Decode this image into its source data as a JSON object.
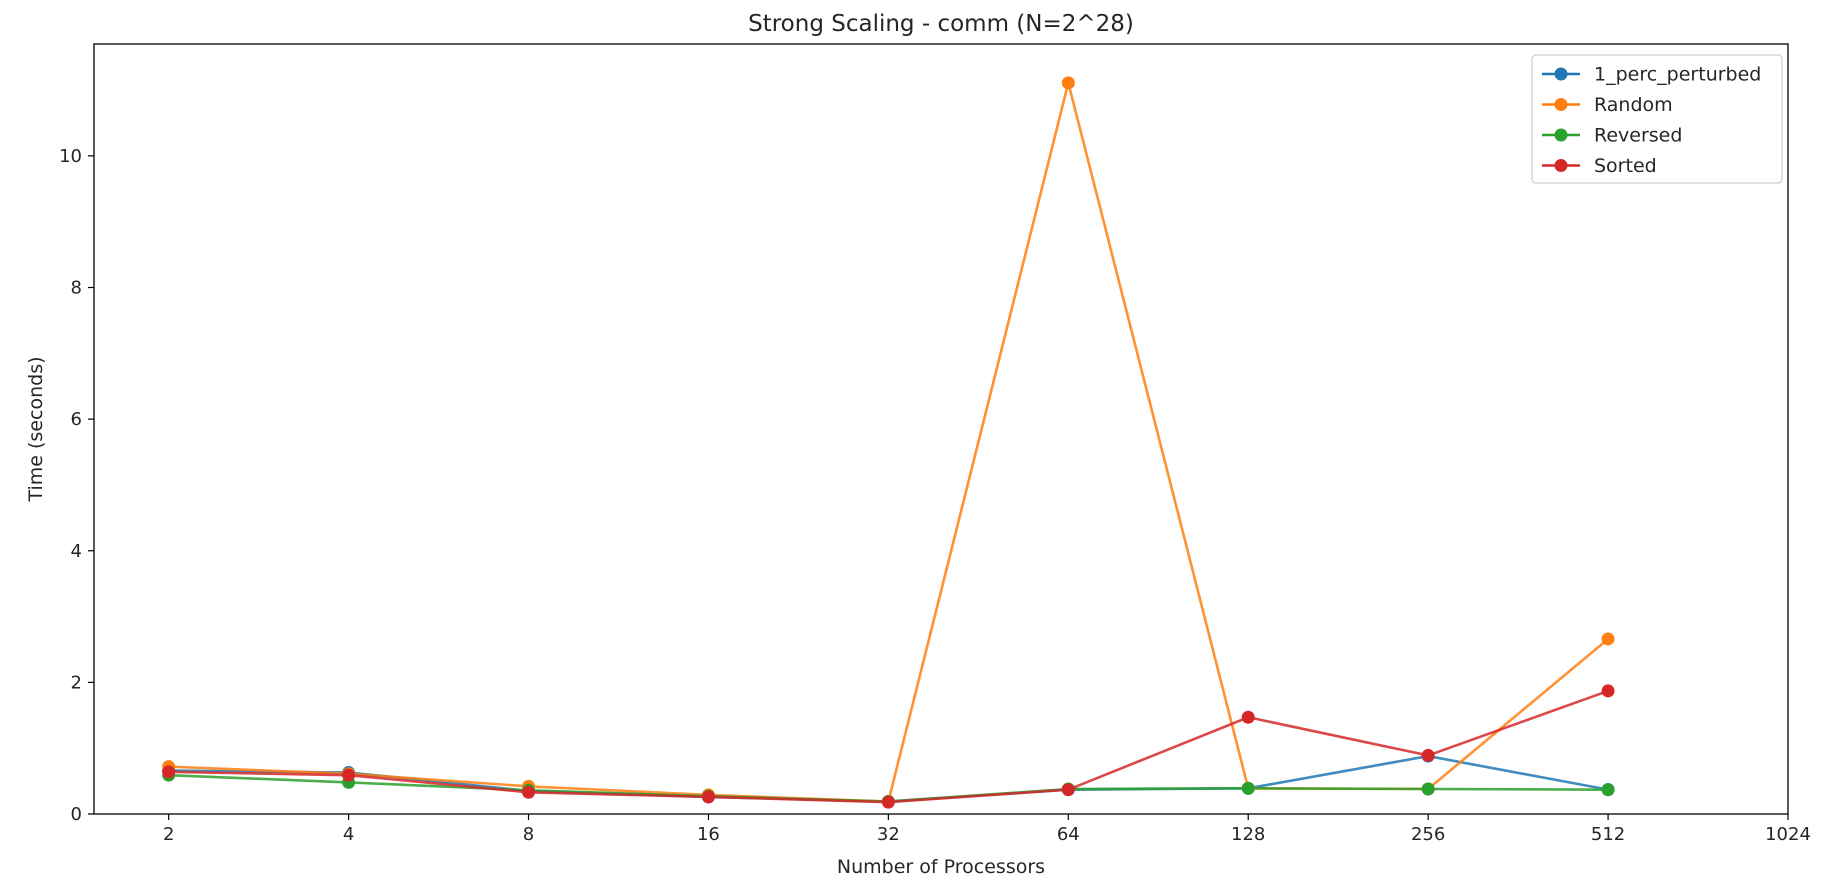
{
  "chart_data": {
    "type": "line",
    "title": "Strong Scaling - comm (N=2^28)",
    "xlabel": "Number of Processors",
    "ylabel": "Time (seconds)",
    "x_scale": "log2",
    "xlim": [
      1.5,
      1024
    ],
    "ylim": [
      0,
      11.7
    ],
    "xticks": [
      2,
      4,
      8,
      16,
      32,
      64,
      128,
      256,
      512,
      1024
    ],
    "xtick_labels": [
      "2",
      "4",
      "8",
      "16",
      "32",
      "64",
      "128",
      "256",
      "512",
      "1024"
    ],
    "yticks": [
      0,
      2,
      4,
      6,
      8,
      10
    ],
    "ytick_labels": [
      "0",
      "2",
      "4",
      "6",
      "8",
      "10"
    ],
    "grid": false,
    "legend_position": "top-right",
    "x": [
      2,
      4,
      8,
      16,
      32,
      64,
      128,
      256,
      512
    ],
    "series": [
      {
        "name": "1_perc_perturbed",
        "color": "#1f77b4",
        "values": [
          0.66,
          0.63,
          0.35,
          0.26,
          0.19,
          0.37,
          0.39,
          0.88,
          0.37
        ]
      },
      {
        "name": "Random",
        "color": "#ff7f0e",
        "values": [
          0.72,
          0.61,
          0.42,
          0.29,
          0.19,
          11.11,
          0.39,
          0.38,
          2.66
        ]
      },
      {
        "name": "Reversed",
        "color": "#2ca02c",
        "values": [
          0.59,
          0.48,
          0.36,
          0.27,
          0.19,
          0.38,
          0.39,
          0.38,
          0.37
        ]
      },
      {
        "name": "Sorted",
        "color": "#d62728",
        "values": [
          0.64,
          0.59,
          0.33,
          0.26,
          0.18,
          0.37,
          1.47,
          0.89,
          1.87
        ]
      }
    ]
  }
}
